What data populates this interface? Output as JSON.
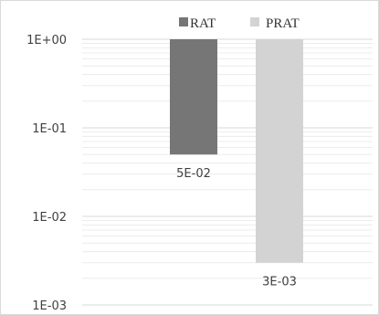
{
  "chart_data": {
    "type": "bar",
    "title": "",
    "xlabel": "",
    "ylabel": "",
    "y_scale": "log",
    "ylim": [
      0.001,
      1
    ],
    "y_ticks": [
      1,
      0.1,
      0.01,
      0.001
    ],
    "y_tick_labels": [
      "1E+00",
      "1E-01",
      "1E-02",
      "1E-03"
    ],
    "grid": "horizontal major and minor",
    "legend_position": "top",
    "series": [
      {
        "name": "RAT",
        "value": 0.05,
        "data_label": "5E-02",
        "color": "#767676"
      },
      {
        "name": "PRAT",
        "value": 0.003,
        "data_label": "3E-03",
        "color": "#d3d3d3"
      }
    ],
    "colors": {
      "grid_major": "#d9d9d9",
      "grid_minor": "#ececec",
      "axis_text": "#404040",
      "frame": "#d9d9d9"
    }
  }
}
